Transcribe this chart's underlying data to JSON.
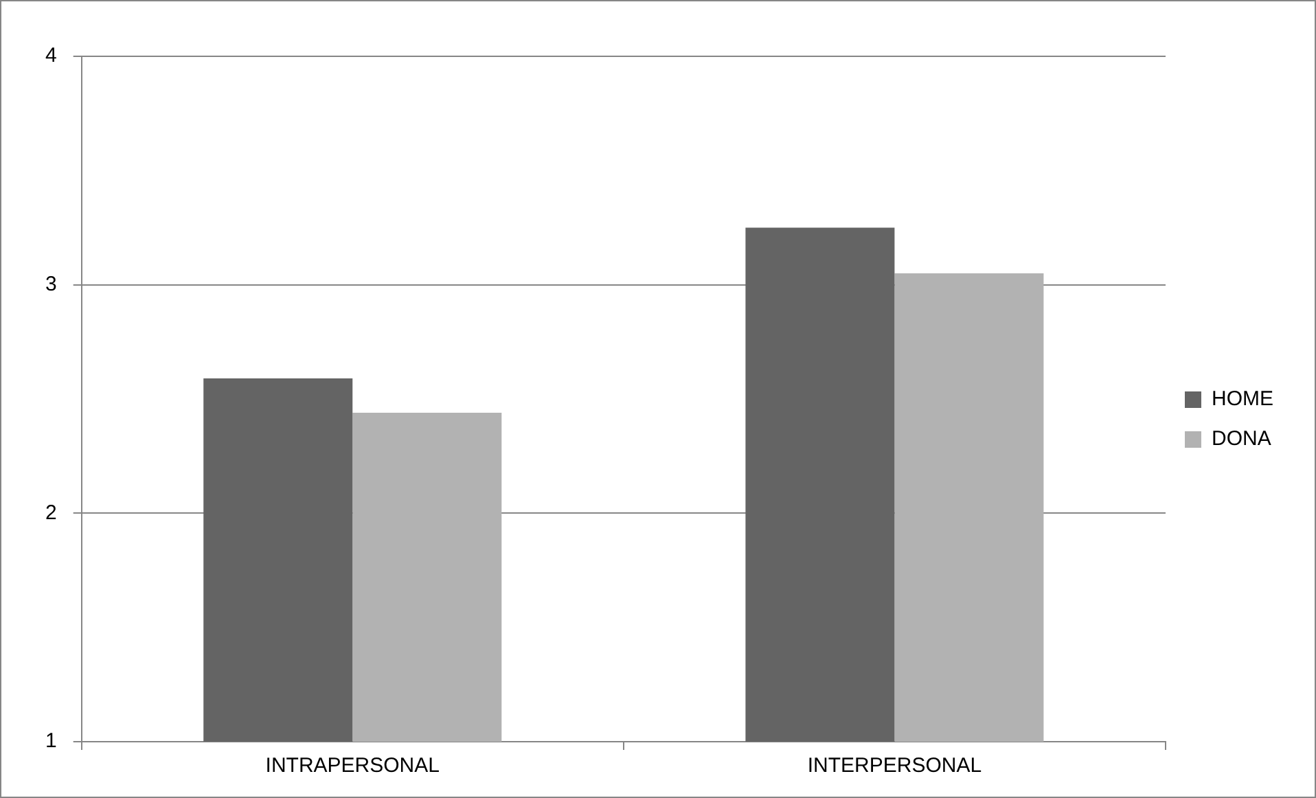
{
  "chart_data": {
    "type": "bar",
    "categories": [
      "INTRAPERSONAL",
      "INTERPERSONAL"
    ],
    "series": [
      {
        "name": "HOME",
        "color": "#646464",
        "values": [
          2.59,
          3.25
        ]
      },
      {
        "name": "DONA",
        "color": "#b2b2b2",
        "values": [
          2.44,
          3.05
        ]
      }
    ],
    "ylim": [
      1,
      4
    ],
    "yticks": [
      1,
      2,
      3,
      4
    ],
    "grid": "y",
    "legend": "right"
  }
}
